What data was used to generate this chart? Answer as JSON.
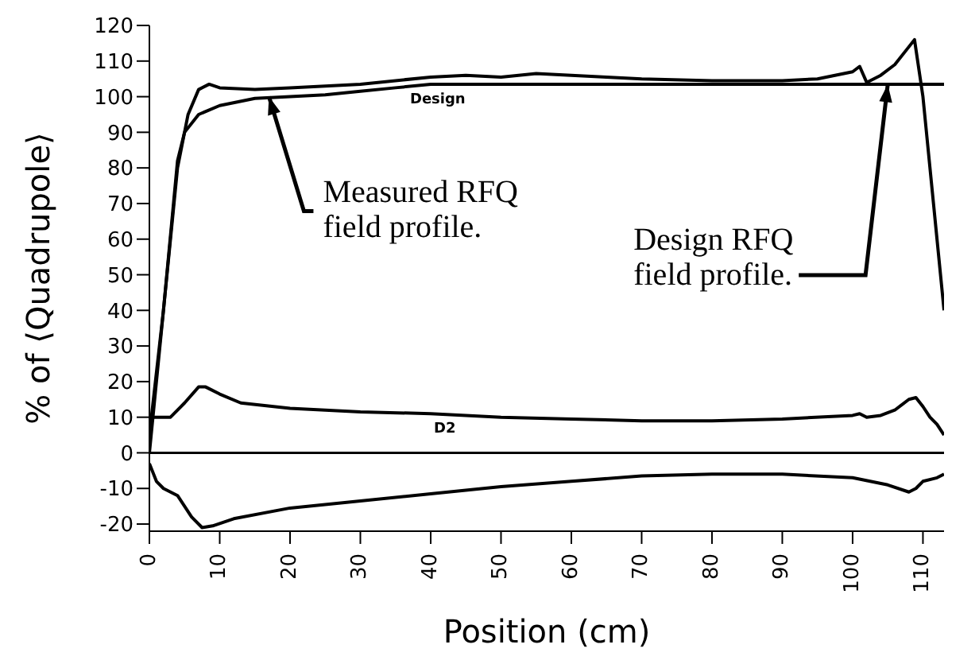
{
  "chart_data": {
    "type": "line",
    "xlabel": "Position (cm)",
    "ylabel": "% of ⟨Quadrupole⟩",
    "xlim": [
      0,
      113
    ],
    "ylim": [
      -22,
      120
    ],
    "xticks": [
      0,
      10,
      20,
      30,
      40,
      50,
      60,
      70,
      80,
      90,
      100,
      110
    ],
    "yticks": [
      -20,
      -10,
      0,
      10,
      20,
      30,
      40,
      50,
      60,
      70,
      80,
      90,
      100,
      110,
      120
    ],
    "marker": "none",
    "line_style": "solid",
    "series": [
      {
        "color": "#000000",
        "x": [
          0,
          2,
          4,
          5.5,
          7,
          8.5,
          10,
          15,
          20,
          30,
          40,
          45,
          50,
          55,
          60,
          65,
          70,
          80,
          90,
          95,
          100,
          101,
          102,
          104,
          106,
          108,
          108.8,
          110,
          112,
          113
        ],
        "values": [
          5,
          40,
          80,
          95,
          102,
          103.5,
          102.5,
          102,
          102.5,
          103.5,
          105.5,
          106,
          105.5,
          106.5,
          106,
          105.5,
          105,
          104.5,
          104.5,
          105,
          107,
          108.5,
          104,
          106,
          109,
          114,
          116,
          100,
          60,
          40
        ]
      },
      {
        "color": "#000000",
        "x": [
          0,
          2,
          4,
          5,
          7,
          10,
          15,
          20,
          25,
          30,
          35,
          40,
          110,
          113
        ],
        "values": [
          0,
          40,
          82,
          90,
          95,
          97.5,
          99.5,
          100,
          100.5,
          101.5,
          102.5,
          103.5,
          103.5,
          103.5
        ]
      },
      {
        "color": "#000000",
        "x": [
          0,
          1,
          3,
          5,
          7,
          8,
          10,
          13,
          20,
          30,
          40,
          50,
          60,
          70,
          80,
          90,
          100,
          101,
          102,
          104,
          106,
          108,
          109,
          110,
          111,
          112,
          113
        ],
        "values": [
          10,
          10,
          10,
          14,
          18.5,
          18.5,
          16.5,
          14,
          12.5,
          11.5,
          11,
          10,
          9.5,
          9,
          9,
          9.5,
          10.5,
          11,
          10,
          10.5,
          12,
          15,
          15.5,
          13,
          10,
          8,
          5
        ]
      },
      {
        "color": "#000000",
        "x": [
          0,
          1,
          2,
          4,
          6,
          7.5,
          9,
          12,
          20,
          30,
          40,
          50,
          60,
          70,
          80,
          90,
          100,
          105,
          108,
          109,
          110,
          112,
          113
        ],
        "values": [
          -3,
          -8,
          -10,
          -12,
          -18,
          -21,
          -20.5,
          -18.5,
          -15.5,
          -13.5,
          -11.5,
          -9.5,
          -8,
          -6.5,
          -6,
          -6,
          -7,
          -9,
          -11,
          -10,
          -8,
          -7,
          -6
        ]
      }
    ],
    "ref_lines": [
      {
        "axis": "y",
        "value": 0,
        "color": "#000000"
      }
    ],
    "annotations": [
      {
        "text": "Measured RFQ field profile.",
        "x": 17,
        "y": 100
      },
      {
        "text": "Design RFQ field profile.",
        "x": 105,
        "y": 103.5
      },
      {
        "text": "Design",
        "x": 41,
        "y": 103.5
      },
      {
        "text": "D2",
        "x": 42,
        "y": 11
      }
    ]
  }
}
